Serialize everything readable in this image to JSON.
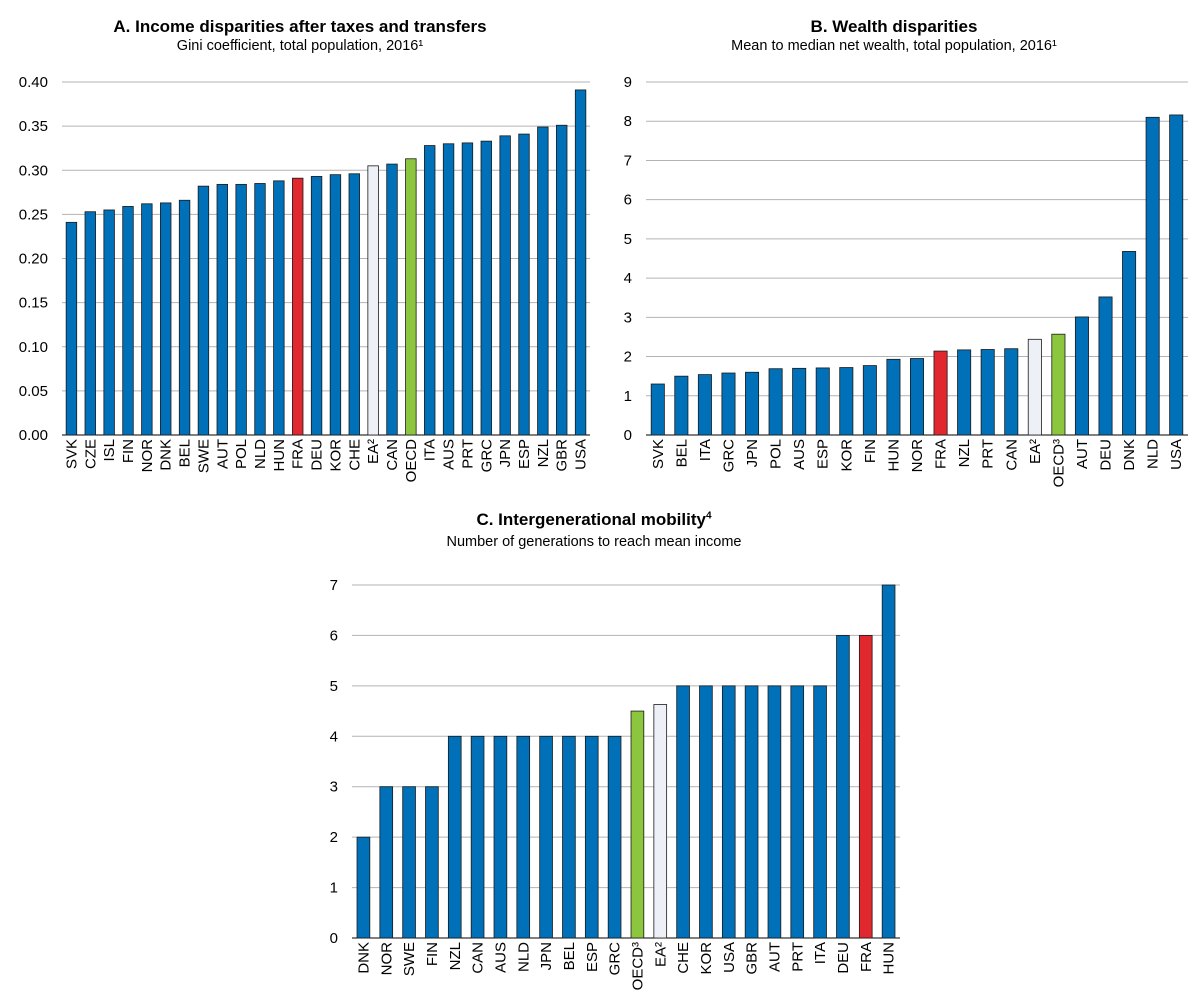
{
  "colors": {
    "default": "#0070b8",
    "france": "#e0282e",
    "oecd": "#8cc63f",
    "euro_area": "#edf0f7",
    "grid": "#b3b3b3",
    "axis": "#000000"
  },
  "chart_data": [
    {
      "id": "A",
      "type": "bar",
      "title": "A. Income disparities after taxes and transfers",
      "subtitle": "Gini coefficient, total population, 2016¹",
      "ylim": [
        0,
        0.4
      ],
      "yticks": [
        "0.00",
        "0.05",
        "0.10",
        "0.15",
        "0.20",
        "0.25",
        "0.30",
        "0.35",
        "0.40"
      ],
      "grid": true,
      "categories": [
        "SVK",
        "CZE",
        "ISL",
        "FIN",
        "NOR",
        "DNK",
        "BEL",
        "SWE",
        "AUT",
        "POL",
        "NLD",
        "HUN",
        "FRA",
        "DEU",
        "KOR",
        "CHE",
        "EA²",
        "CAN",
        "OECD",
        "ITA",
        "AUS",
        "PRT",
        "GRC",
        "JPN",
        "ESP",
        "NZL",
        "GBR",
        "USA"
      ],
      "values": [
        0.241,
        0.253,
        0.255,
        0.259,
        0.262,
        0.263,
        0.266,
        0.282,
        0.284,
        0.284,
        0.285,
        0.288,
        0.291,
        0.293,
        0.295,
        0.296,
        0.305,
        0.307,
        0.313,
        0.328,
        0.33,
        0.331,
        0.333,
        0.339,
        0.341,
        0.349,
        0.351,
        0.391
      ],
      "highlight": {
        "FRA": "france",
        "OECD": "oecd",
        "EA²": "euro_area"
      }
    },
    {
      "id": "B",
      "type": "bar",
      "title": "B. Wealth disparities",
      "subtitle": "Mean to median net wealth, total population, 2016¹",
      "ylim": [
        0,
        9
      ],
      "yticks": [
        "0",
        "1",
        "2",
        "3",
        "4",
        "5",
        "6",
        "7",
        "8",
        "9"
      ],
      "grid": true,
      "categories": [
        "SVK",
        "BEL",
        "ITA",
        "GRC",
        "JPN",
        "POL",
        "AUS",
        "ESP",
        "KOR",
        "FIN",
        "HUN",
        "NOR",
        "FRA",
        "NZL",
        "PRT",
        "CAN",
        "EA²",
        "OECD³",
        "AUT",
        "DEU",
        "DNK",
        "NLD",
        "USA"
      ],
      "values": [
        1.3,
        1.5,
        1.54,
        1.58,
        1.6,
        1.69,
        1.7,
        1.71,
        1.72,
        1.77,
        1.93,
        1.95,
        2.14,
        2.17,
        2.18,
        2.2,
        2.44,
        2.57,
        3.01,
        3.52,
        4.68,
        8.1,
        8.16
      ],
      "highlight": {
        "FRA": "france",
        "OECD³": "oecd",
        "EA²": "euro_area"
      }
    },
    {
      "id": "C",
      "type": "bar",
      "title": "C. Intergenerational mobility",
      "title_sup": "4",
      "subtitle": "Number of generations to reach mean income",
      "ylim": [
        0,
        7
      ],
      "yticks": [
        "0",
        "1",
        "2",
        "3",
        "4",
        "5",
        "6",
        "7"
      ],
      "grid": true,
      "categories": [
        "DNK",
        "NOR",
        "SWE",
        "FIN",
        "NZL",
        "CAN",
        "AUS",
        "NLD",
        "JPN",
        "BEL",
        "ESP",
        "GRC",
        "OECD³",
        "EA²",
        "CHE",
        "KOR",
        "USA",
        "GBR",
        "AUT",
        "PRT",
        "ITA",
        "DEU",
        "FRA",
        "HUN"
      ],
      "values": [
        2,
        3,
        3,
        3,
        4,
        4,
        4,
        4,
        4,
        4,
        4,
        4,
        4.5,
        4.63,
        5,
        5,
        5,
        5,
        5,
        5,
        5,
        6,
        6,
        7
      ],
      "highlight": {
        "FRA": "france",
        "OECD³": "oecd",
        "EA²": "euro_area"
      }
    }
  ]
}
